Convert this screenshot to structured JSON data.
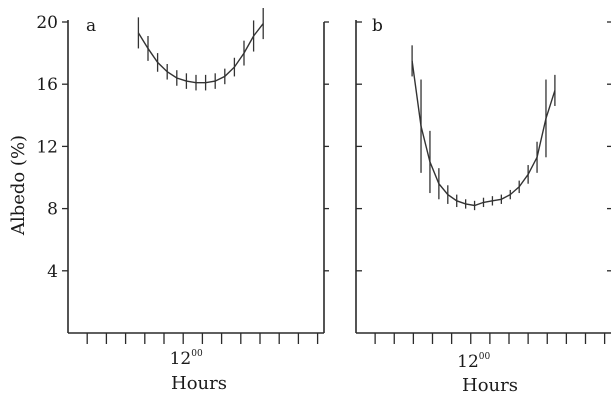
{
  "chart_data": [
    {
      "panel": "a",
      "type": "line",
      "ylabel": "Albedo (%)",
      "xlabel": "Hours",
      "x_tick_label": "12",
      "x_tick_label_sup": "00",
      "x_tick_label_value": 12,
      "ylim": [
        0,
        20
      ],
      "yticks": [
        4,
        8,
        12,
        16,
        20
      ],
      "xlim": [
        2.5,
        22.5
      ],
      "x": [
        8,
        8.75,
        9.5,
        10.25,
        11,
        11.75,
        12.5,
        13.25,
        14,
        14.75,
        15.5,
        16.25,
        17,
        17.75
      ],
      "y": [
        19.3,
        18.3,
        17.4,
        16.8,
        16.4,
        16.2,
        16.1,
        16.1,
        16.2,
        16.5,
        17.1,
        18.0,
        19.1,
        19.9
      ],
      "error": [
        1.0,
        0.8,
        0.6,
        0.5,
        0.5,
        0.5,
        0.5,
        0.5,
        0.5,
        0.5,
        0.6,
        0.8,
        1.0,
        1.0
      ]
    },
    {
      "panel": "b",
      "type": "line",
      "xlabel": "Hours",
      "x_tick_label": "12",
      "x_tick_label_sup": "00",
      "x_tick_label_value": 12,
      "ylim": [
        0,
        20
      ],
      "yticks": [
        4,
        8,
        12,
        16,
        20
      ],
      "xlim": [
        2.5,
        22.5
      ],
      "x": [
        6.9,
        7.6,
        8.3,
        9.0,
        9.7,
        10.4,
        11.1,
        11.8,
        12.5,
        13.2,
        13.9,
        14.6,
        15.3,
        16.0,
        16.7,
        17.4,
        18.1
      ],
      "y": [
        17.5,
        13.3,
        11.0,
        9.6,
        8.9,
        8.5,
        8.3,
        8.2,
        8.4,
        8.5,
        8.6,
        8.9,
        9.4,
        10.2,
        11.3,
        13.8,
        15.6
      ],
      "error": [
        1.0,
        3.0,
        2.0,
        1.0,
        0.6,
        0.4,
        0.3,
        0.3,
        0.3,
        0.3,
        0.3,
        0.3,
        0.4,
        0.6,
        1.0,
        2.5,
        1.0
      ]
    }
  ]
}
